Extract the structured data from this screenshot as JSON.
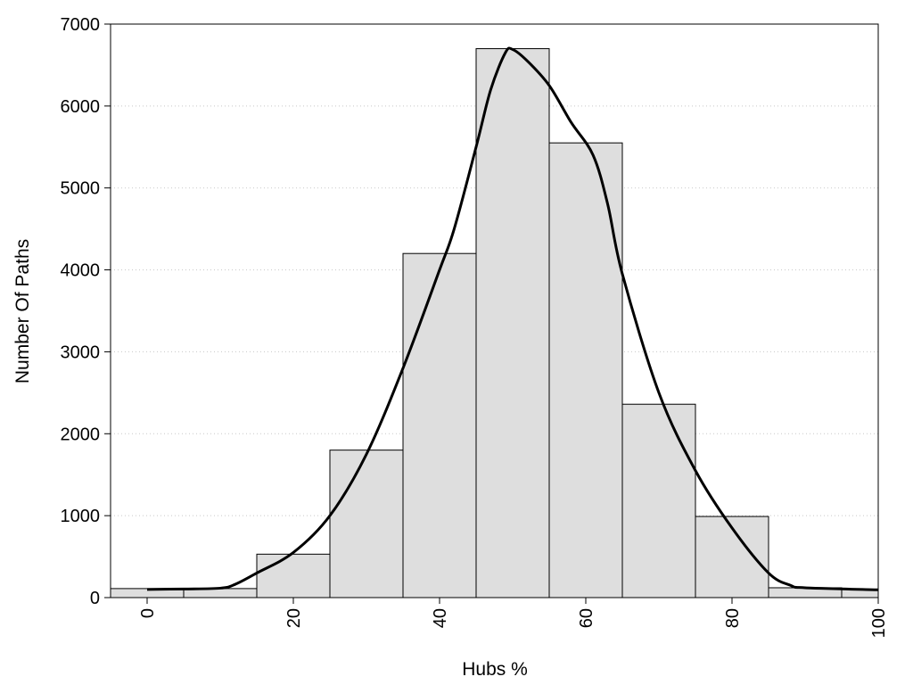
{
  "chart_data": {
    "type": "bar",
    "title": "",
    "xlabel": "Hubs %",
    "ylabel": "Number Of Paths",
    "xlim": [
      -5,
      100
    ],
    "ylim": [
      0,
      7000
    ],
    "x_ticks": [
      0,
      20,
      40,
      60,
      80,
      100
    ],
    "y_ticks": [
      0,
      1000,
      2000,
      3000,
      4000,
      5000,
      6000,
      7000
    ],
    "grid": "horizontal dotted",
    "bin_width": 10,
    "bins": [
      {
        "center": 0,
        "value": 110
      },
      {
        "center": 10,
        "value": 110
      },
      {
        "center": 20,
        "value": 530
      },
      {
        "center": 30,
        "value": 1800
      },
      {
        "center": 40,
        "value": 4200
      },
      {
        "center": 50,
        "value": 6700
      },
      {
        "center": 60,
        "value": 5550
      },
      {
        "center": 70,
        "value": 2360
      },
      {
        "center": 80,
        "value": 990
      },
      {
        "center": 90,
        "value": 120
      },
      {
        "center": 100,
        "value": 100
      }
    ],
    "density_curve": [
      [
        0,
        100
      ],
      [
        5,
        105
      ],
      [
        10,
        115
      ],
      [
        12,
        160
      ],
      [
        15,
        300
      ],
      [
        20,
        550
      ],
      [
        25,
        1000
      ],
      [
        30,
        1750
      ],
      [
        35,
        2800
      ],
      [
        40,
        4000
      ],
      [
        42,
        4500
      ],
      [
        45,
        5500
      ],
      [
        47,
        6200
      ],
      [
        49,
        6650
      ],
      [
        50,
        6690
      ],
      [
        52,
        6550
      ],
      [
        55,
        6250
      ],
      [
        58,
        5800
      ],
      [
        61,
        5400
      ],
      [
        63,
        4800
      ],
      [
        65,
        3950
      ],
      [
        70,
        2500
      ],
      [
        75,
        1550
      ],
      [
        80,
        850
      ],
      [
        85,
        300
      ],
      [
        88,
        150
      ],
      [
        90,
        120
      ],
      [
        100,
        95
      ]
    ],
    "colors": {
      "bar_fill": "#dedede",
      "bar_stroke": "#000000",
      "curve": "#000000",
      "grid": "#c8c8c8"
    }
  }
}
